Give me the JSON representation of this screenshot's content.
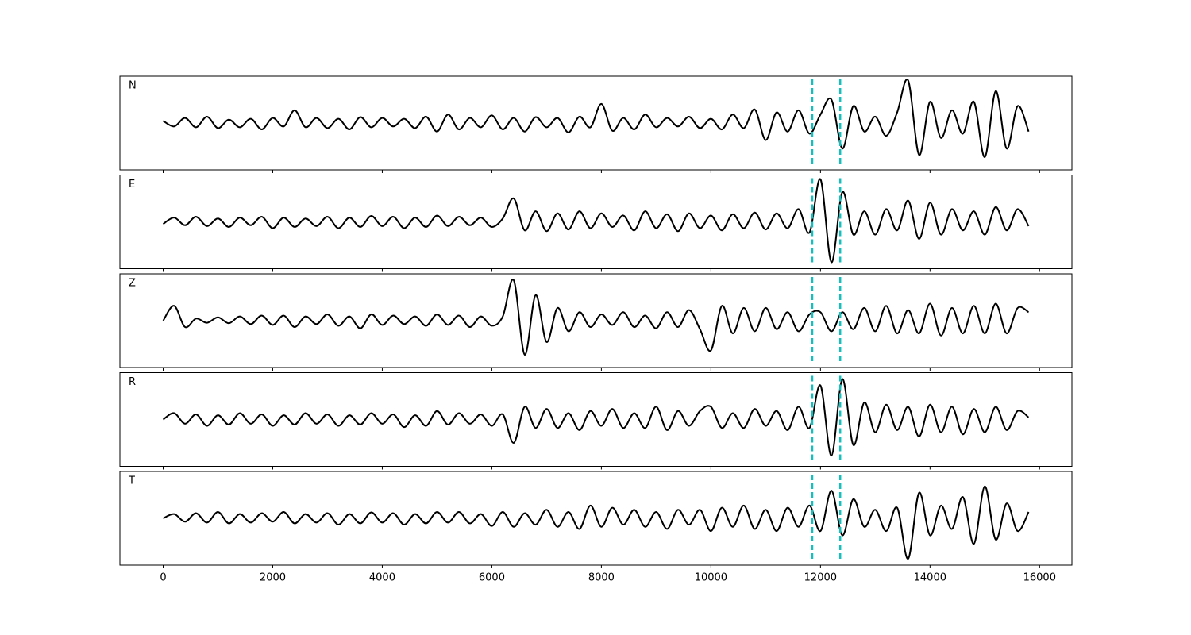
{
  "chart_data": {
    "type": "line",
    "x": [
      0,
      200,
      400,
      600,
      800,
      1000,
      1200,
      1400,
      1600,
      1800,
      2000,
      2200,
      2400,
      2600,
      2800,
      3000,
      3200,
      3400,
      3600,
      3800,
      4000,
      4200,
      4400,
      4600,
      4800,
      5000,
      5200,
      5400,
      5600,
      5800,
      6000,
      6200,
      6400,
      6600,
      6800,
      7000,
      7200,
      7400,
      7600,
      7800,
      8000,
      8200,
      8400,
      8600,
      8800,
      9000,
      9200,
      9400,
      9600,
      9800,
      10000,
      10200,
      10400,
      10600,
      10800,
      11000,
      11200,
      11400,
      11600,
      11800,
      12000,
      12200,
      12400,
      12600,
      12800,
      13000,
      13200,
      13400,
      13600,
      13800,
      14000,
      14200,
      14400,
      14600,
      14800,
      15000,
      15200,
      15400,
      15600,
      15800
    ],
    "xlim": [
      -790,
      16590
    ],
    "xticks": [
      0,
      2000,
      4000,
      6000,
      8000,
      10000,
      12000,
      14000,
      16000
    ],
    "ylim": [
      -1.1,
      1.1
    ],
    "line_color": "#000000",
    "markers": [
      11850,
      12360
    ],
    "marker_color": "#17bebb",
    "series": [
      {
        "name": "N",
        "values": [
          0.05,
          -0.08,
          0.12,
          -0.1,
          0.15,
          -0.12,
          0.08,
          -0.1,
          0.1,
          -0.15,
          0.12,
          -0.08,
          0.3,
          -0.1,
          0.12,
          -0.12,
          0.1,
          -0.15,
          0.14,
          -0.1,
          0.12,
          -0.08,
          0.1,
          -0.12,
          0.15,
          -0.2,
          0.2,
          -0.15,
          0.12,
          -0.1,
          0.18,
          -0.15,
          0.12,
          -0.2,
          0.14,
          -0.1,
          0.12,
          -0.22,
          0.15,
          -0.1,
          0.45,
          -0.18,
          0.12,
          -0.15,
          0.2,
          -0.1,
          0.12,
          -0.08,
          0.15,
          -0.12,
          0.1,
          -0.15,
          0.2,
          -0.12,
          0.32,
          -0.4,
          0.25,
          -0.2,
          0.3,
          -0.25,
          0.2,
          0.55,
          -0.6,
          0.4,
          -0.2,
          0.15,
          -0.3,
          0.25,
          1.0,
          -0.75,
          0.5,
          -0.35,
          0.3,
          -0.25,
          0.5,
          -0.8,
          0.75,
          -0.6,
          0.4,
          -0.2
        ]
      },
      {
        "name": "E",
        "values": [
          -0.05,
          0.1,
          -0.08,
          0.12,
          -0.1,
          0.08,
          -0.12,
          0.1,
          -0.08,
          0.12,
          -0.15,
          0.1,
          -0.12,
          0.08,
          -0.1,
          0.12,
          -0.15,
          0.1,
          -0.12,
          0.14,
          -0.1,
          0.12,
          -0.15,
          0.1,
          -0.12,
          0.15,
          -0.1,
          0.12,
          -0.08,
          0.1,
          -0.12,
          0.08,
          0.55,
          -0.2,
          0.25,
          -0.22,
          0.2,
          -0.18,
          0.25,
          -0.15,
          0.2,
          -0.12,
          0.15,
          -0.2,
          0.25,
          -0.15,
          0.18,
          -0.22,
          0.2,
          -0.15,
          0.15,
          -0.2,
          0.18,
          -0.15,
          0.22,
          -0.18,
          0.2,
          -0.15,
          0.3,
          -0.25,
          1.0,
          -0.95,
          0.7,
          -0.3,
          0.25,
          -0.3,
          0.3,
          -0.2,
          0.5,
          -0.4,
          0.45,
          -0.3,
          0.3,
          -0.2,
          0.25,
          -0.3,
          0.35,
          -0.2,
          0.3,
          -0.1
        ]
      },
      {
        "name": "Z",
        "values": [
          0.0,
          0.35,
          -0.15,
          0.05,
          -0.05,
          0.08,
          -0.06,
          0.1,
          -0.08,
          0.12,
          -0.1,
          0.12,
          -0.15,
          0.1,
          -0.08,
          0.15,
          -0.12,
          0.1,
          -0.18,
          0.15,
          -0.1,
          0.12,
          -0.08,
          0.1,
          -0.12,
          0.15,
          -0.1,
          0.12,
          -0.15,
          0.1,
          -0.12,
          0.1,
          0.95,
          -0.8,
          0.6,
          -0.5,
          0.3,
          -0.25,
          0.2,
          -0.15,
          0.15,
          -0.1,
          0.2,
          -0.15,
          0.12,
          -0.18,
          0.2,
          -0.15,
          0.25,
          -0.2,
          -0.7,
          0.35,
          -0.3,
          0.3,
          -0.25,
          0.3,
          -0.2,
          0.2,
          -0.25,
          0.15,
          0.2,
          -0.25,
          0.2,
          -0.2,
          0.3,
          -0.25,
          0.35,
          -0.3,
          0.25,
          -0.3,
          0.4,
          -0.35,
          0.3,
          -0.3,
          0.35,
          -0.3,
          0.4,
          -0.3,
          0.3,
          0.2
        ]
      },
      {
        "name": "R",
        "values": [
          0.0,
          0.15,
          -0.1,
          0.12,
          -0.15,
          0.1,
          -0.12,
          0.15,
          -0.1,
          0.12,
          -0.15,
          0.1,
          -0.12,
          0.15,
          -0.1,
          0.12,
          -0.15,
          0.1,
          -0.12,
          0.15,
          -0.1,
          0.12,
          -0.18,
          0.1,
          -0.15,
          0.2,
          -0.12,
          0.15,
          -0.1,
          0.12,
          -0.15,
          0.12,
          -0.55,
          0.3,
          -0.2,
          0.25,
          -0.2,
          0.15,
          -0.25,
          0.2,
          -0.15,
          0.25,
          -0.2,
          0.15,
          -0.2,
          0.3,
          -0.25,
          0.2,
          -0.15,
          0.2,
          0.3,
          -0.2,
          0.15,
          -0.2,
          0.25,
          -0.15,
          0.2,
          -0.25,
          0.3,
          -0.2,
          0.8,
          -0.85,
          0.95,
          -0.6,
          0.4,
          -0.3,
          0.35,
          -0.25,
          0.3,
          -0.4,
          0.35,
          -0.3,
          0.3,
          -0.35,
          0.25,
          -0.3,
          0.3,
          -0.25,
          0.2,
          0.05
        ]
      },
      {
        "name": "T",
        "values": [
          0.0,
          0.1,
          -0.08,
          0.12,
          -0.1,
          0.15,
          -0.12,
          0.1,
          -0.1,
          0.12,
          -0.08,
          0.15,
          -0.12,
          0.1,
          -0.1,
          0.12,
          -0.15,
          0.1,
          -0.12,
          0.14,
          -0.1,
          0.12,
          -0.15,
          0.1,
          -0.12,
          0.15,
          -0.1,
          0.15,
          -0.12,
          0.1,
          -0.18,
          0.15,
          -0.2,
          0.12,
          -0.15,
          0.2,
          -0.2,
          0.15,
          -0.25,
          0.3,
          -0.2,
          0.25,
          -0.15,
          0.2,
          -0.2,
          0.15,
          -0.25,
          0.2,
          -0.15,
          0.2,
          -0.3,
          0.25,
          -0.2,
          0.3,
          -0.25,
          0.2,
          -0.3,
          0.25,
          -0.2,
          0.3,
          -0.3,
          0.65,
          -0.4,
          0.45,
          -0.2,
          0.2,
          -0.3,
          0.25,
          -0.95,
          0.6,
          -0.4,
          0.3,
          -0.25,
          0.5,
          -0.6,
          0.75,
          -0.5,
          0.35,
          -0.3,
          0.15
        ]
      }
    ]
  }
}
